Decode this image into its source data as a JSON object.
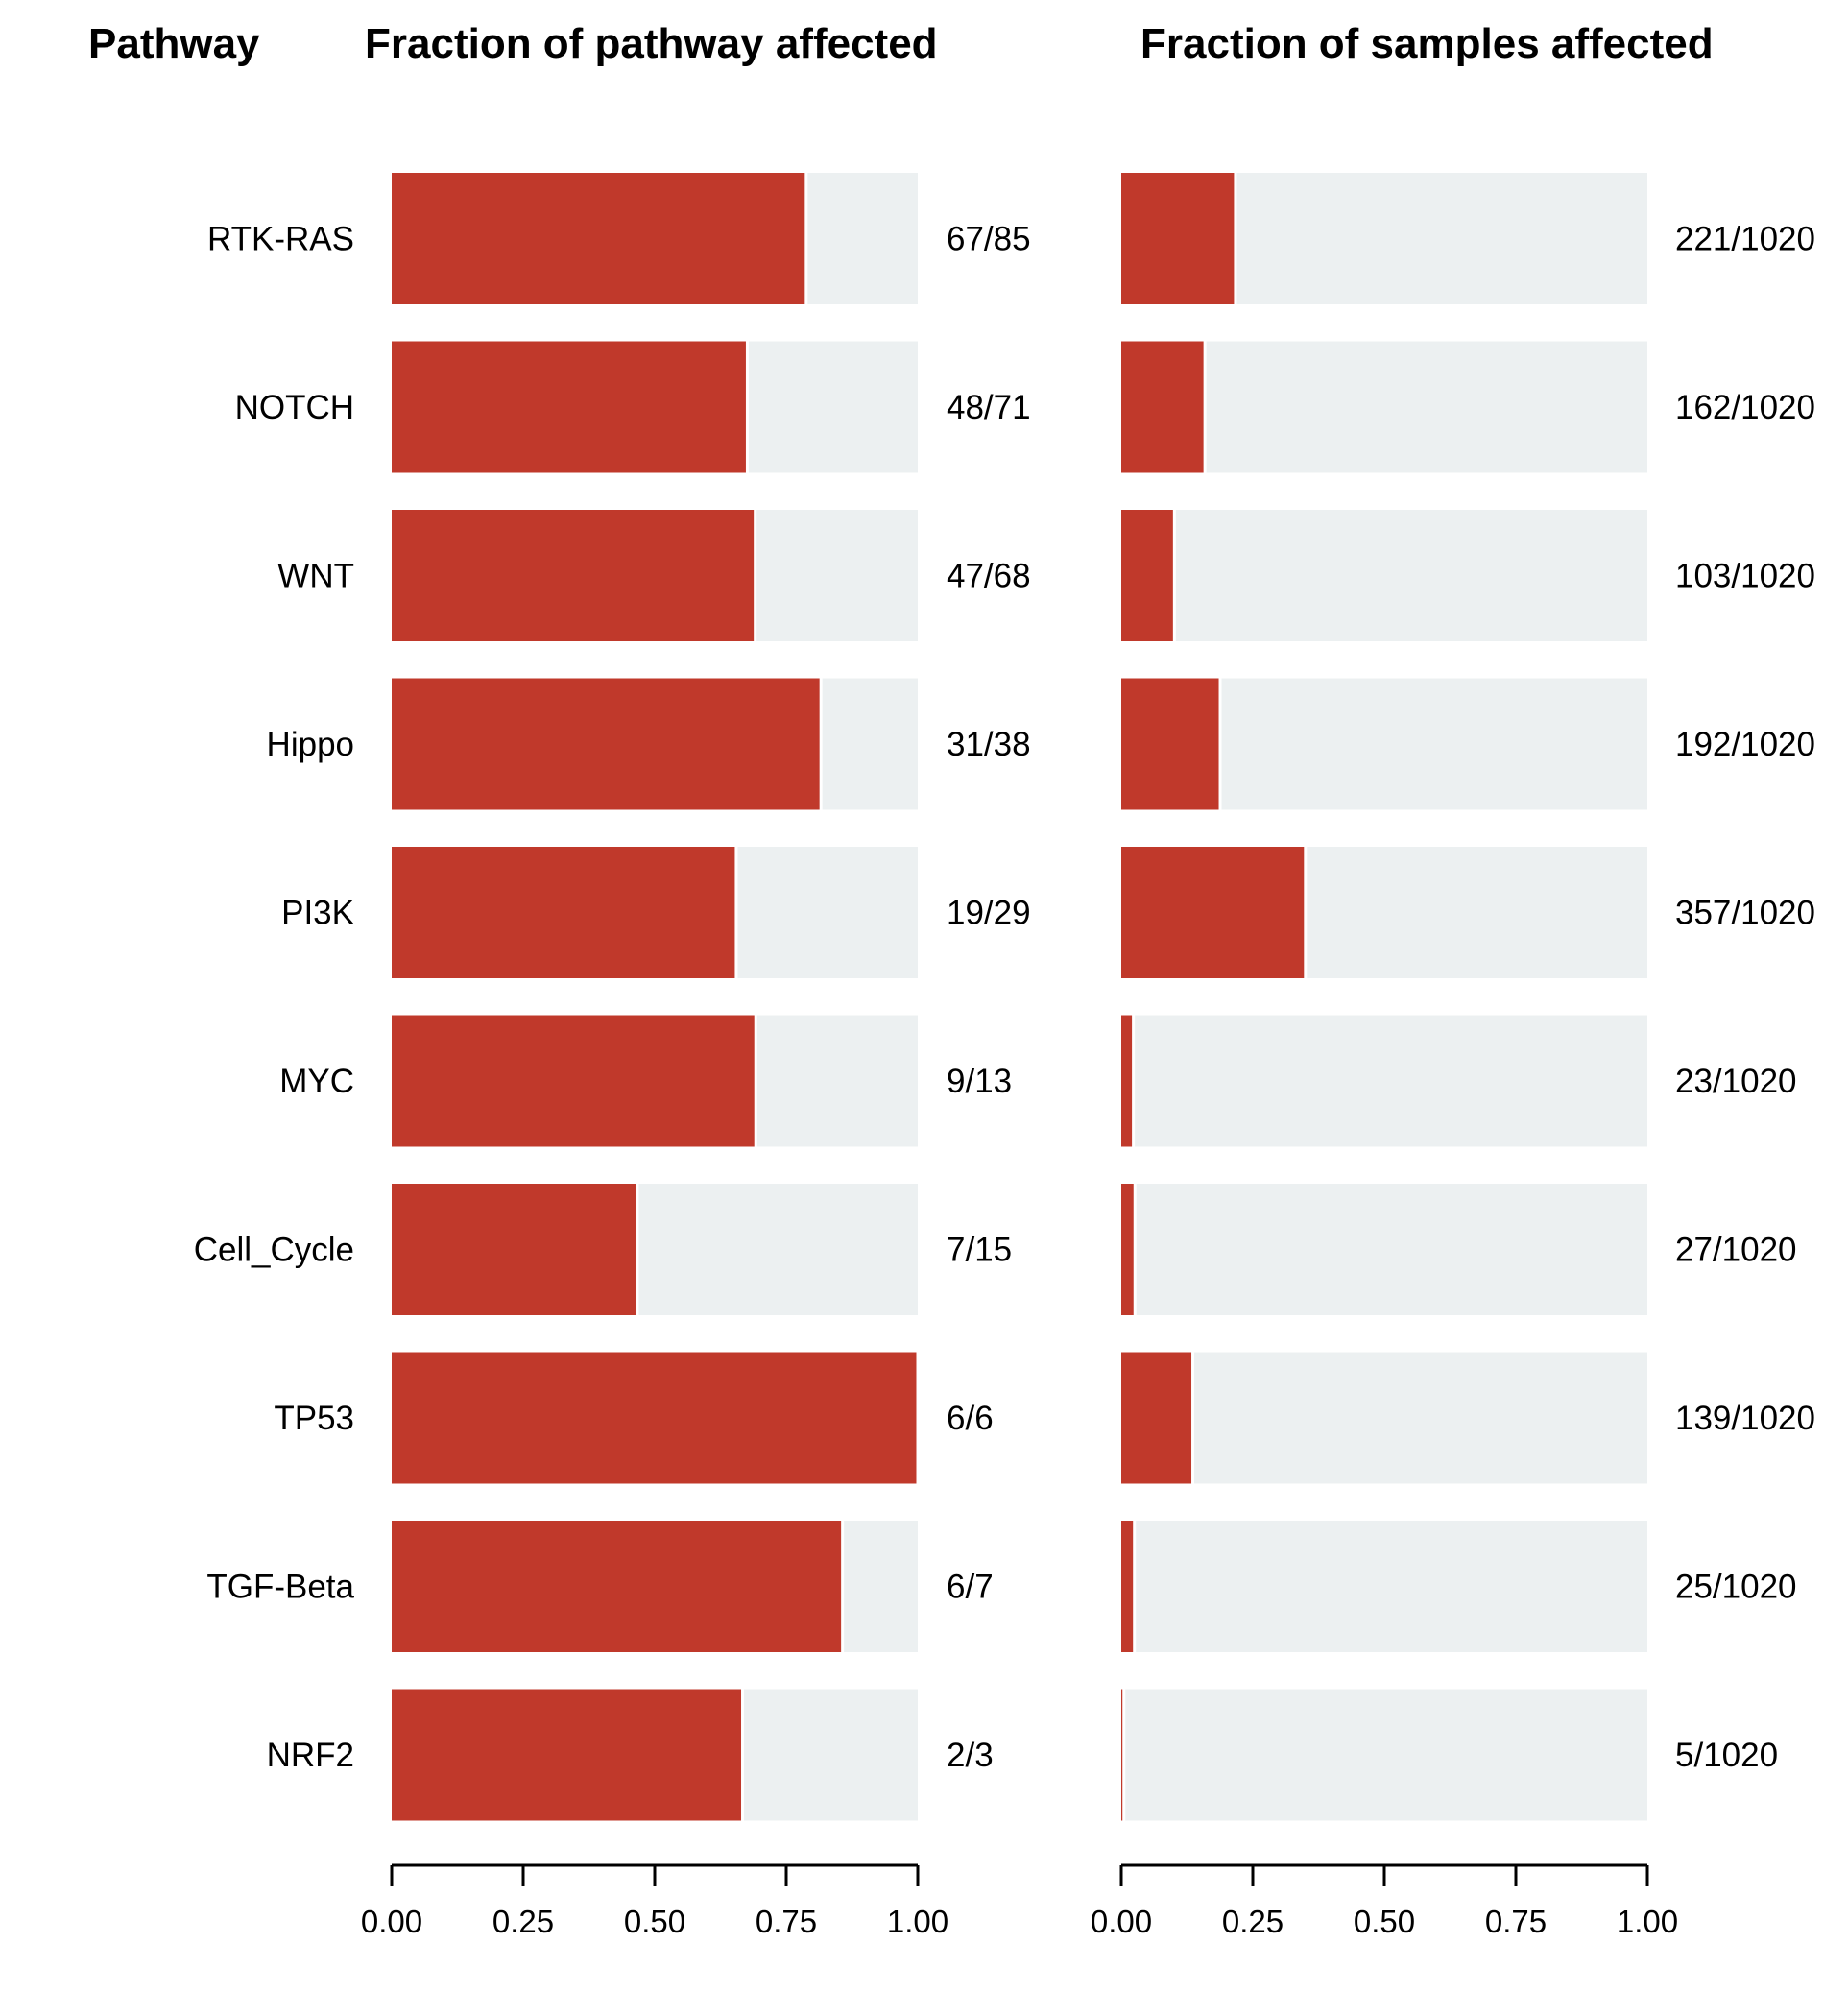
{
  "headers": {
    "pathway": "Pathway",
    "left": "Fraction of pathway affected",
    "right": "Fraction of samples affected"
  },
  "colors": {
    "affected": "#c0392b",
    "background": "#ecf0f1",
    "axis": "#000000"
  },
  "chart_data": {
    "type": "bar",
    "categories": [
      "RTK-RAS",
      "NOTCH",
      "WNT",
      "Hippo",
      "PI3K",
      "MYC",
      "Cell_Cycle",
      "TP53",
      "TGF-Beta",
      "NRF2"
    ],
    "panels": [
      {
        "title": "Fraction of pathway affected",
        "xlim": [
          0,
          1
        ],
        "ticks": [
          "0.00",
          "0.25",
          "0.50",
          "0.75",
          "1.00"
        ],
        "values": [
          0.788,
          0.676,
          0.691,
          0.816,
          0.655,
          0.692,
          0.467,
          1.0,
          0.857,
          0.667
        ],
        "labels": [
          "67/85",
          "48/71",
          "47/68",
          "31/38",
          "19/29",
          "9/13",
          "7/15",
          "6/6",
          "6/7",
          "2/3"
        ]
      },
      {
        "title": "Fraction of samples affected",
        "xlim": [
          0,
          1
        ],
        "ticks": [
          "0.00",
          "0.25",
          "0.50",
          "0.75",
          "1.00"
        ],
        "values": [
          0.217,
          0.159,
          0.101,
          0.188,
          0.35,
          0.023,
          0.026,
          0.136,
          0.025,
          0.005
        ],
        "labels": [
          "221/1020",
          "162/1020",
          "103/1020",
          "192/1020",
          "357/1020",
          "23/1020",
          "27/1020",
          "139/1020",
          "25/1020",
          "5/1020"
        ]
      }
    ]
  }
}
